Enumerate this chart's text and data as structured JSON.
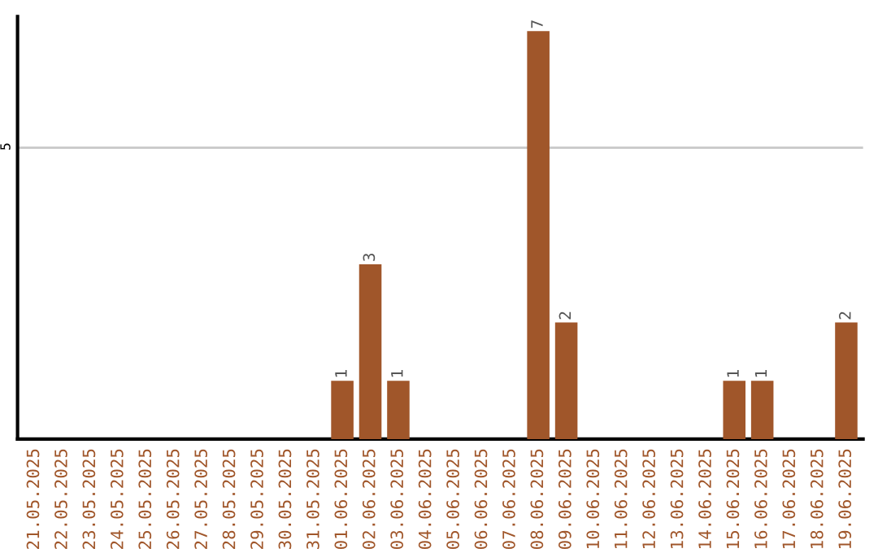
{
  "chart_data": {
    "type": "bar",
    "categories": [
      "21.05.2025",
      "22.05.2025",
      "23.05.2025",
      "24.05.2025",
      "25.05.2025",
      "26.05.2025",
      "27.05.2025",
      "28.05.2025",
      "29.05.2025",
      "30.05.2025",
      "31.05.2025",
      "01.06.2025",
      "02.06.2025",
      "03.06.2025",
      "04.06.2025",
      "05.06.2025",
      "06.06.2025",
      "07.06.2025",
      "08.06.2025",
      "09.06.2025",
      "10.06.2025",
      "11.06.2025",
      "12.06.2025",
      "13.06.2025",
      "14.06.2025",
      "15.06.2025",
      "16.06.2025",
      "17.06.2025",
      "18.06.2025",
      "19.06.2025"
    ],
    "values": [
      0,
      0,
      0,
      0,
      0,
      0,
      0,
      0,
      0,
      0,
      0,
      1,
      3,
      1,
      0,
      0,
      0,
      0,
      7,
      2,
      0,
      0,
      0,
      0,
      0,
      1,
      1,
      0,
      0,
      2
    ],
    "value_labels": [
      null,
      null,
      null,
      null,
      null,
      null,
      null,
      null,
      null,
      null,
      null,
      "1",
      "3",
      "1",
      null,
      null,
      null,
      null,
      "7",
      "2",
      null,
      null,
      null,
      null,
      null,
      "1",
      "1",
      null,
      null,
      "2"
    ],
    "color": "#a0562a",
    "ylim": [
      0,
      7.25
    ],
    "yticks": [
      5
    ],
    "grid": "y",
    "legend": false
  }
}
